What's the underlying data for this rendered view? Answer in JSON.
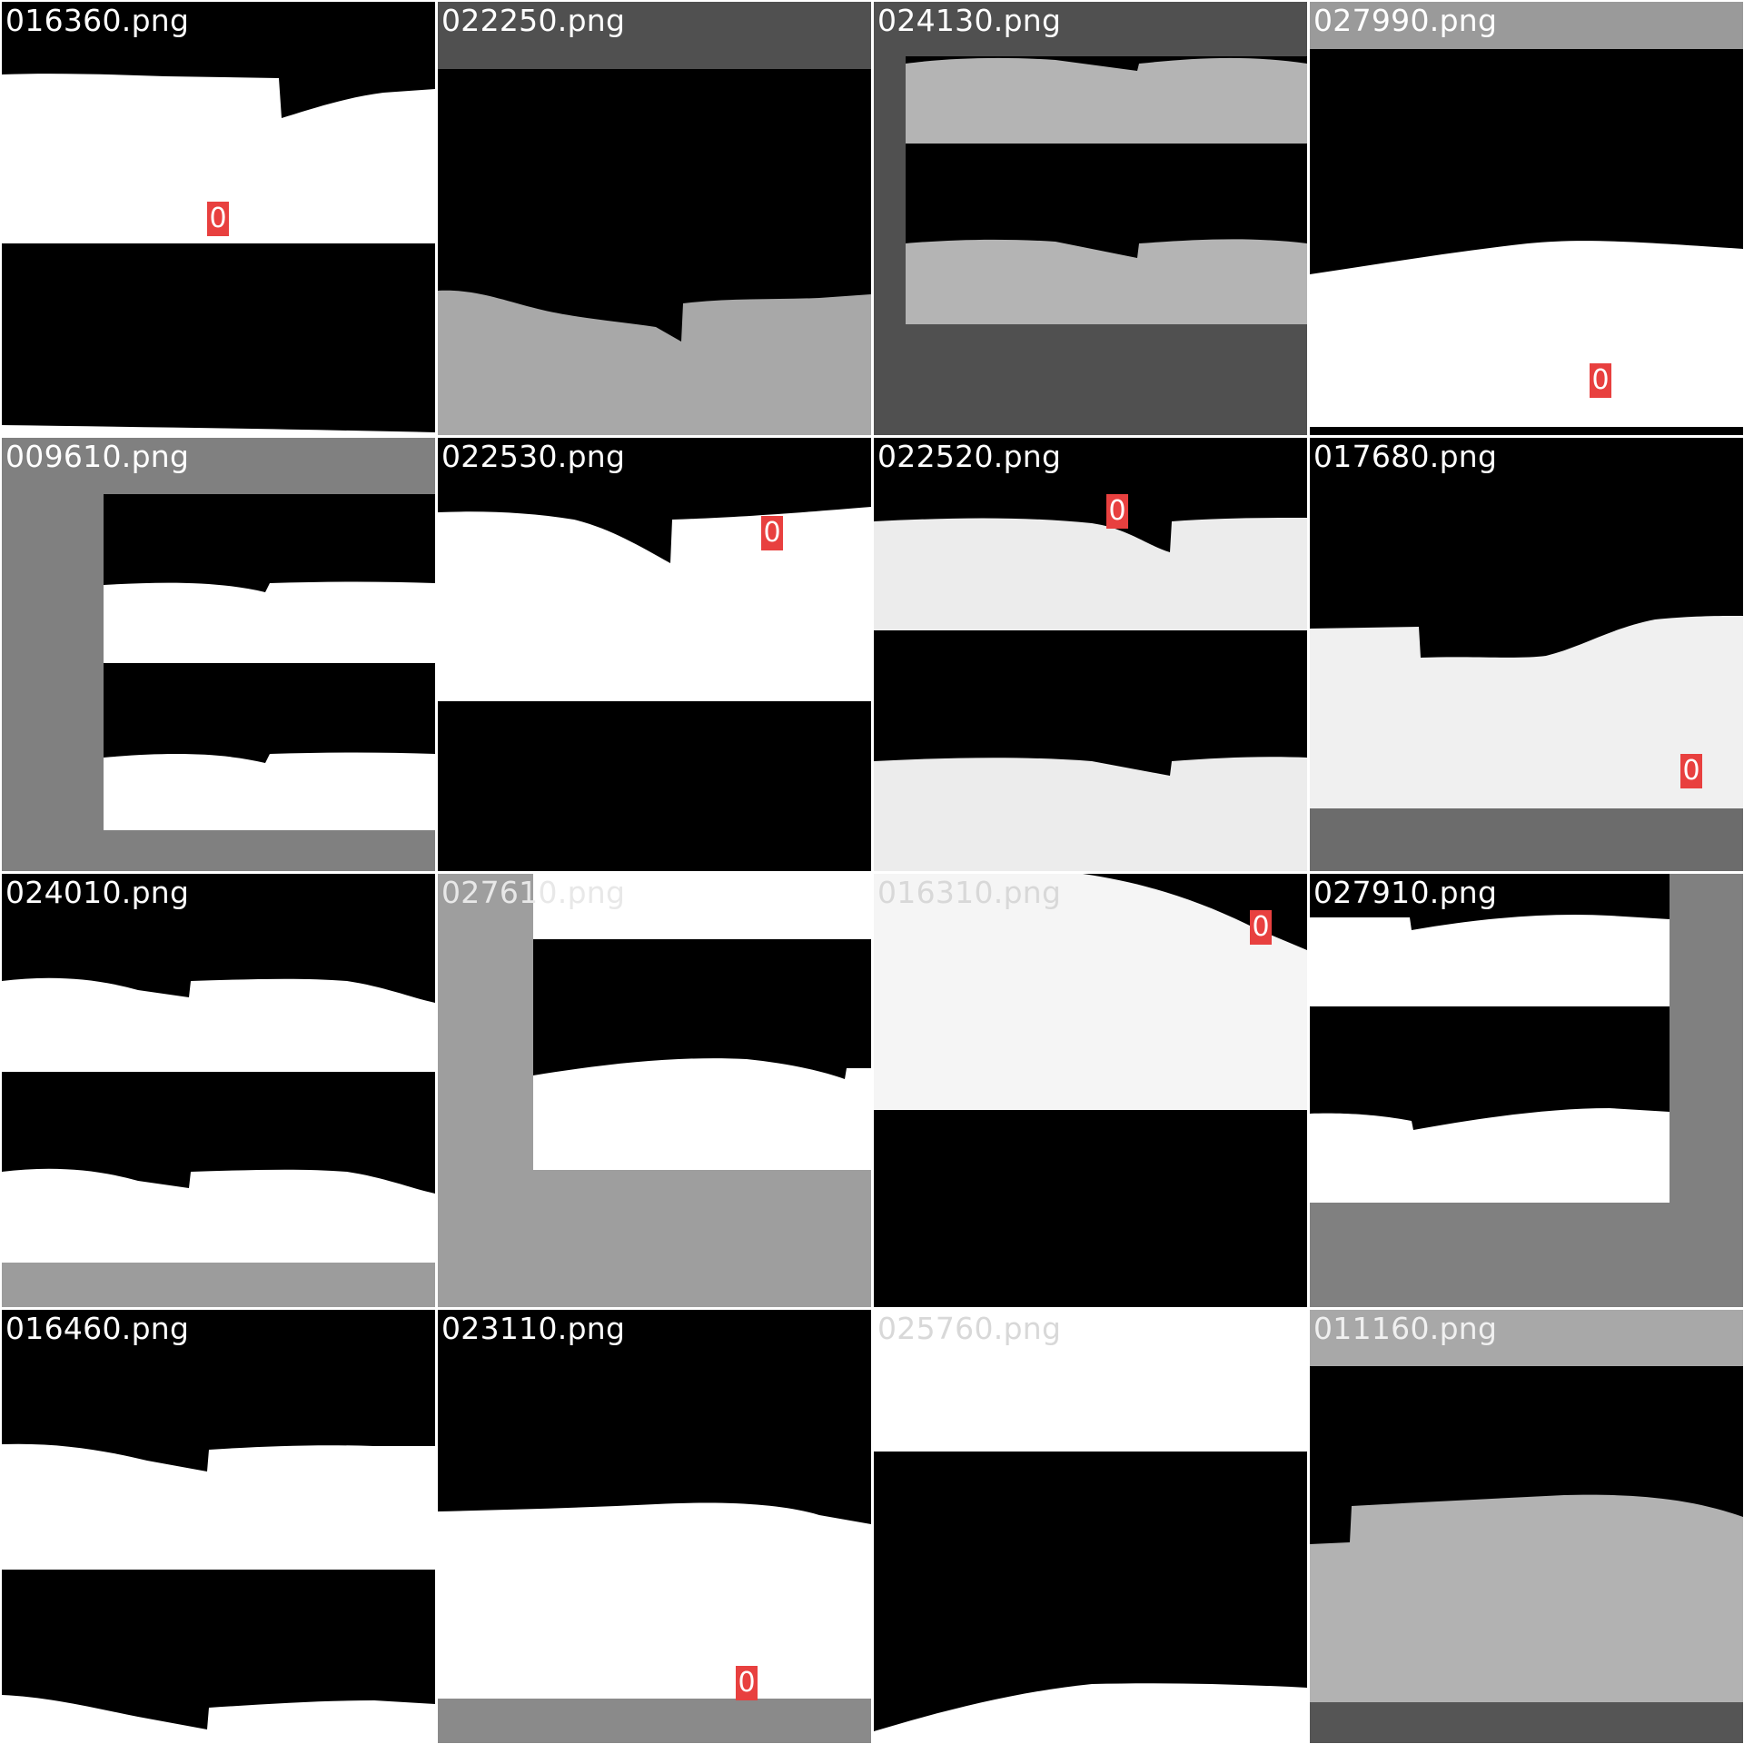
{
  "colors": {
    "black": "#000000",
    "white": "#ffffff",
    "detection_badge": "#e8403f"
  },
  "tiles": [
    {
      "filename": "016360.png",
      "label_color": "#ffffff",
      "detections": [
        "0"
      ]
    },
    {
      "filename": "022250.png",
      "label_color": "#ffffff",
      "detections": []
    },
    {
      "filename": "024130.png",
      "label_color": "#ffffff",
      "detections": []
    },
    {
      "filename": "027990.png",
      "label_color": "#ffffff",
      "detections": [
        "0"
      ]
    },
    {
      "filename": "009610.png",
      "label_color": "#ffffff",
      "detections": []
    },
    {
      "filename": "022530.png",
      "label_color": "#ffffff",
      "detections": [
        "0"
      ]
    },
    {
      "filename": "022520.png",
      "label_color": "#ffffff",
      "detections": [
        "0"
      ]
    },
    {
      "filename": "017680.png",
      "label_color": "#ffffff",
      "detections": [
        "0"
      ]
    },
    {
      "filename": "024010.png",
      "label_color": "#ffffff",
      "detections": []
    },
    {
      "filename": "027610.png",
      "label_color": "#e8e8e8",
      "detections": []
    },
    {
      "filename": "016310.png",
      "label_color": "#d8d8d8",
      "detections": [
        "0"
      ]
    },
    {
      "filename": "027910.png",
      "label_color": "#ffffff",
      "detections": []
    },
    {
      "filename": "016460.png",
      "label_color": "#ffffff",
      "detections": []
    },
    {
      "filename": "023110.png",
      "label_color": "#ffffff",
      "detections": [
        "0"
      ]
    },
    {
      "filename": "025760.png",
      "label_color": "#d8d8d8",
      "detections": []
    },
    {
      "filename": "011160.png",
      "label_color": "#f0f0f0",
      "detections": []
    }
  ]
}
